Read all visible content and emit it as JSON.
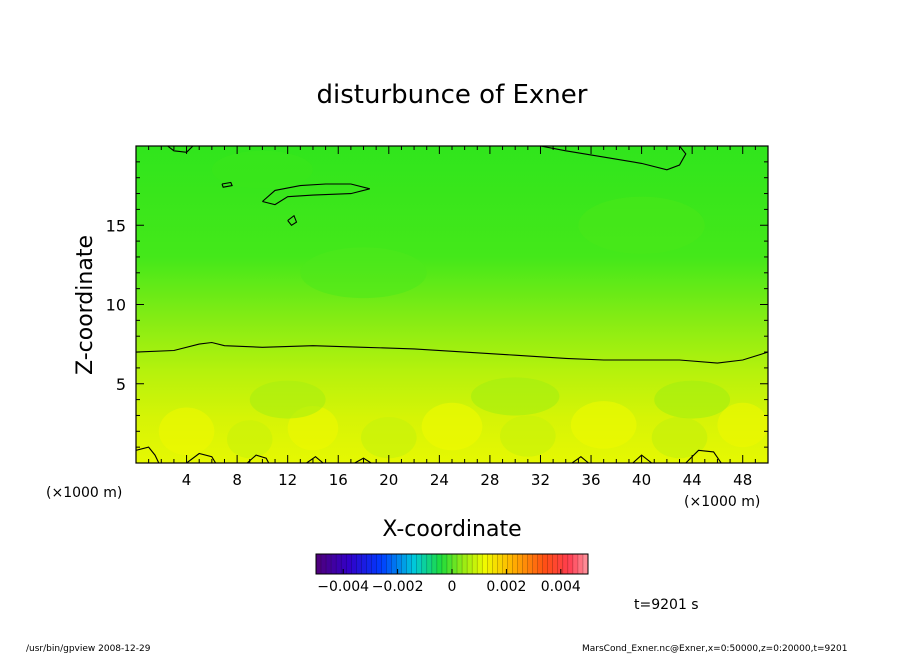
{
  "chart_data": {
    "type": "heatmap",
    "title": "disturbunce of Exner",
    "xlabel": "X-coordinate",
    "ylabel": "Z-coordinate",
    "x_unit": "(×1000 m)",
    "y_unit": "(×1000 m)",
    "xlim": [
      0,
      50
    ],
    "ylim": [
      0,
      20
    ],
    "x_ticks": [
      4,
      8,
      12,
      16,
      20,
      24,
      28,
      32,
      36,
      40,
      44,
      48
    ],
    "y_ticks": [
      5,
      10,
      15
    ],
    "colorbar": {
      "range": [
        -0.005,
        0.005
      ],
      "tick_values": [
        -0.004,
        -0.002,
        0,
        0.002,
        0.004
      ],
      "tick_labels": [
        "−0.004",
        "−0.002",
        "0",
        "0.002",
        "0.004"
      ]
    },
    "contour_lines": [
      {
        "level": 0,
        "points": [
          [
            0,
            7.0
          ],
          [
            3,
            7.1
          ],
          [
            5,
            7.5
          ],
          [
            6,
            7.6
          ],
          [
            7,
            7.4
          ],
          [
            10,
            7.3
          ],
          [
            14,
            7.4
          ],
          [
            18,
            7.3
          ],
          [
            22,
            7.2
          ],
          [
            26,
            7.0
          ],
          [
            30,
            6.8
          ],
          [
            34,
            6.6
          ],
          [
            37,
            6.5
          ],
          [
            40,
            6.5
          ],
          [
            43,
            6.5
          ],
          [
            46,
            6.3
          ],
          [
            48,
            6.5
          ],
          [
            50,
            7.0
          ]
        ]
      },
      {
        "level": 0,
        "points": [
          [
            10,
            16.5
          ],
          [
            11,
            17.2
          ],
          [
            13,
            17.5
          ],
          [
            15,
            17.6
          ],
          [
            17,
            17.6
          ],
          [
            18.5,
            17.3
          ],
          [
            17,
            17.0
          ],
          [
            14,
            16.9
          ],
          [
            12,
            16.8
          ],
          [
            11,
            16.3
          ],
          [
            10,
            16.5
          ]
        ]
      },
      {
        "level": 0,
        "points": [
          [
            12,
            15.3
          ],
          [
            12.5,
            15.6
          ],
          [
            12.7,
            15.2
          ],
          [
            12.3,
            15.0
          ],
          [
            12,
            15.3
          ]
        ]
      },
      {
        "level": 0,
        "points": [
          [
            6.8,
            17.6
          ],
          [
            7.5,
            17.7
          ],
          [
            7.6,
            17.5
          ],
          [
            6.9,
            17.4
          ],
          [
            6.8,
            17.6
          ]
        ]
      },
      {
        "level": 0,
        "points": [
          [
            2.5,
            20
          ],
          [
            3,
            19.7
          ],
          [
            4,
            19.6
          ],
          [
            4.5,
            20
          ]
        ]
      },
      {
        "level": 0,
        "points": [
          [
            32,
            20
          ],
          [
            34,
            19.7
          ],
          [
            37,
            19.3
          ],
          [
            40,
            18.9
          ],
          [
            42,
            18.5
          ],
          [
            43,
            18.8
          ],
          [
            43.5,
            19.5
          ],
          [
            43,
            20
          ]
        ]
      },
      {
        "level": 0,
        "points": [
          [
            0,
            0.8
          ],
          [
            1,
            1.0
          ],
          [
            1.5,
            0.5
          ],
          [
            1.8,
            0
          ]
        ]
      },
      {
        "level": 0,
        "points": [
          [
            4,
            0
          ],
          [
            5,
            0.6
          ],
          [
            6,
            0.4
          ],
          [
            6.3,
            0
          ]
        ]
      },
      {
        "level": 0,
        "points": [
          [
            8.8,
            0
          ],
          [
            9.5,
            0.5
          ],
          [
            10.3,
            0.3
          ],
          [
            10.5,
            0
          ]
        ]
      },
      {
        "level": 0,
        "points": [
          [
            13.5,
            0
          ],
          [
            14.2,
            0.4
          ],
          [
            14.8,
            0
          ]
        ]
      },
      {
        "level": 0,
        "points": [
          [
            17.3,
            0
          ],
          [
            18,
            0.3
          ],
          [
            18.6,
            0
          ]
        ]
      },
      {
        "level": 0,
        "points": [
          [
            34.5,
            0
          ],
          [
            35.2,
            0.4
          ],
          [
            35.8,
            0
          ]
        ]
      },
      {
        "level": 0,
        "points": [
          [
            39.3,
            0
          ],
          [
            40,
            0.5
          ],
          [
            40.8,
            0
          ]
        ]
      },
      {
        "level": 0,
        "points": [
          [
            43.5,
            0
          ],
          [
            44.5,
            0.8
          ],
          [
            45.7,
            0.7
          ],
          [
            46.3,
            0
          ]
        ]
      }
    ]
  },
  "time_label": "t=9201 s",
  "footer": {
    "left": "/usr/bin/gpview   2008-12-29",
    "right": "MarsCond_Exner.nc@Exner,x=0:50000,z=0:20000,t=9201"
  }
}
